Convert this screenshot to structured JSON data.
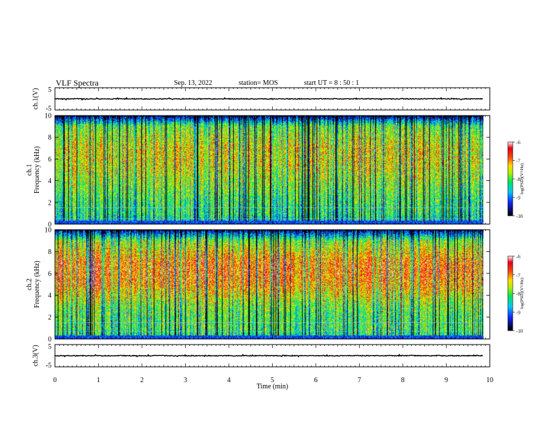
{
  "header": {
    "title": "VLF Spectra",
    "date": "Sep. 13, 2022",
    "station": "station= MOS",
    "start_ut": "start  UT  =   8  : 50 : 1"
  },
  "chart_data": [
    {
      "type": "line",
      "id": "ch1-waveform",
      "ylabel": "ch.1(V)",
      "ylim": [
        -5,
        5
      ],
      "yticks": [
        "5",
        "-5"
      ],
      "xlim": [
        0,
        10
      ],
      "series": [
        {
          "x": [
            0,
            9.85
          ],
          "y": [
            0,
            0
          ]
        }
      ]
    },
    {
      "type": "heatmap",
      "id": "ch1-spectrogram",
      "ylabel": "ch.1\nFrequency  (kHz)",
      "ylim": [
        0,
        10
      ],
      "yticks": [
        "0",
        "2",
        "4",
        "6",
        "8",
        "10"
      ],
      "xlim": [
        0,
        10
      ],
      "data_xmax": 9.85,
      "colorbar": {
        "label": "log(PSD)(V²/Hz)",
        "range": [
          -10,
          -6
        ],
        "ticks": [
          "-6",
          "-7",
          "-8",
          "-9",
          "-10"
        ]
      },
      "freq_profile_kHz": [
        0,
        1,
        2,
        3,
        4,
        5,
        6,
        7,
        8,
        9,
        9.6,
        10
      ],
      "level_profile_logpsd": [
        -8.6,
        -8.2,
        -8.1,
        -7.9,
        -7.7,
        -7.5,
        -7.4,
        -7.4,
        -7.6,
        -7.9,
        -9.0,
        -9.9
      ],
      "lines_kHz": [
        0.5,
        1.5
      ]
    },
    {
      "type": "heatmap",
      "id": "ch2-spectrogram",
      "ylabel": "ch.2\nFrequency  (kHz)",
      "ylim": [
        0,
        10
      ],
      "yticks": [
        "0",
        "2",
        "4",
        "6",
        "8",
        "10"
      ],
      "xlim": [
        0,
        10
      ],
      "data_xmax": 9.85,
      "colorbar": {
        "label": "log(PSD)(V²/Hz)",
        "range": [
          -10,
          -6
        ],
        "ticks": [
          "-6",
          "-7",
          "-8",
          "-9",
          "-10"
        ]
      },
      "freq_profile_kHz": [
        0,
        1,
        2,
        3,
        4,
        5,
        6,
        7,
        8,
        9,
        9.6,
        10
      ],
      "level_profile_logpsd": [
        -8.4,
        -8.0,
        -8.0,
        -7.8,
        -7.4,
        -7.0,
        -6.9,
        -6.9,
        -7.3,
        -7.8,
        -8.9,
        -9.8
      ],
      "lines_kHz": [
        0.7,
        1.5
      ]
    },
    {
      "type": "line",
      "id": "ch3-waveform",
      "ylabel": "ch.3(V)",
      "ylim": [
        -5,
        5
      ],
      "yticks": [
        "5",
        "-5"
      ],
      "xlim": [
        0,
        10
      ],
      "xlabel": "Time  (min)",
      "xticks": [
        "0",
        "1",
        "2",
        "3",
        "4",
        "5",
        "6",
        "7",
        "8",
        "9",
        "10"
      ],
      "series": [
        {
          "x": [
            0,
            9.85
          ],
          "y": [
            0,
            0
          ]
        }
      ]
    }
  ]
}
